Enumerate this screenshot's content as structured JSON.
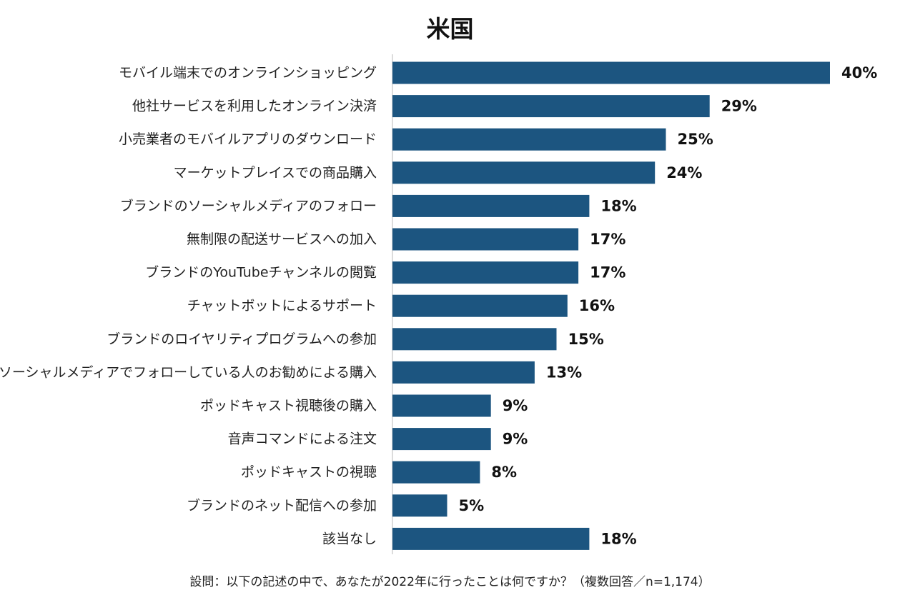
{
  "chart_data": {
    "type": "bar",
    "orientation": "horizontal",
    "title": "米国",
    "categories": [
      "モバイル端末でのオンラインショッピング",
      "他社サービスを利用したオンライン決済",
      "小売業者のモバイルアプリのダウンロード",
      "マーケットプレイスでの商品購入",
      "ブランドのソーシャルメディアのフォロー",
      "無制限の配送サービスへの加入",
      "ブランドのYouTubeチャンネルの閲覧",
      "チャットボットによるサポート",
      "ブランドのロイヤリティプログラムへの参加",
      "ソーシャルメディアでフォローしている人のお勧めによる購入",
      "ポッドキャスト視聴後の購入",
      "音声コマンドによる注文",
      "ポッドキャストの視聴",
      "ブランドのネット配信への参加",
      "該当なし"
    ],
    "values": [
      40,
      29,
      25,
      24,
      18,
      17,
      17,
      16,
      15,
      13,
      9,
      9,
      8,
      5,
      18
    ],
    "value_labels": [
      "40%",
      "29%",
      "25%",
      "24%",
      "18%",
      "17%",
      "17%",
      "16%",
      "15%",
      "13%",
      "9%",
      "9%",
      "8%",
      "5%",
      "18%"
    ],
    "unit": "%",
    "xlim": [
      0,
      40
    ],
    "grid": false,
    "legend": "none",
    "bar_color": "#1c5580",
    "axis_color": "#d0d0d0",
    "footnote": "設問：以下の記述の中で、あなたが2022年に行ったことは何ですか？（複数回答／n=1,174）"
  }
}
